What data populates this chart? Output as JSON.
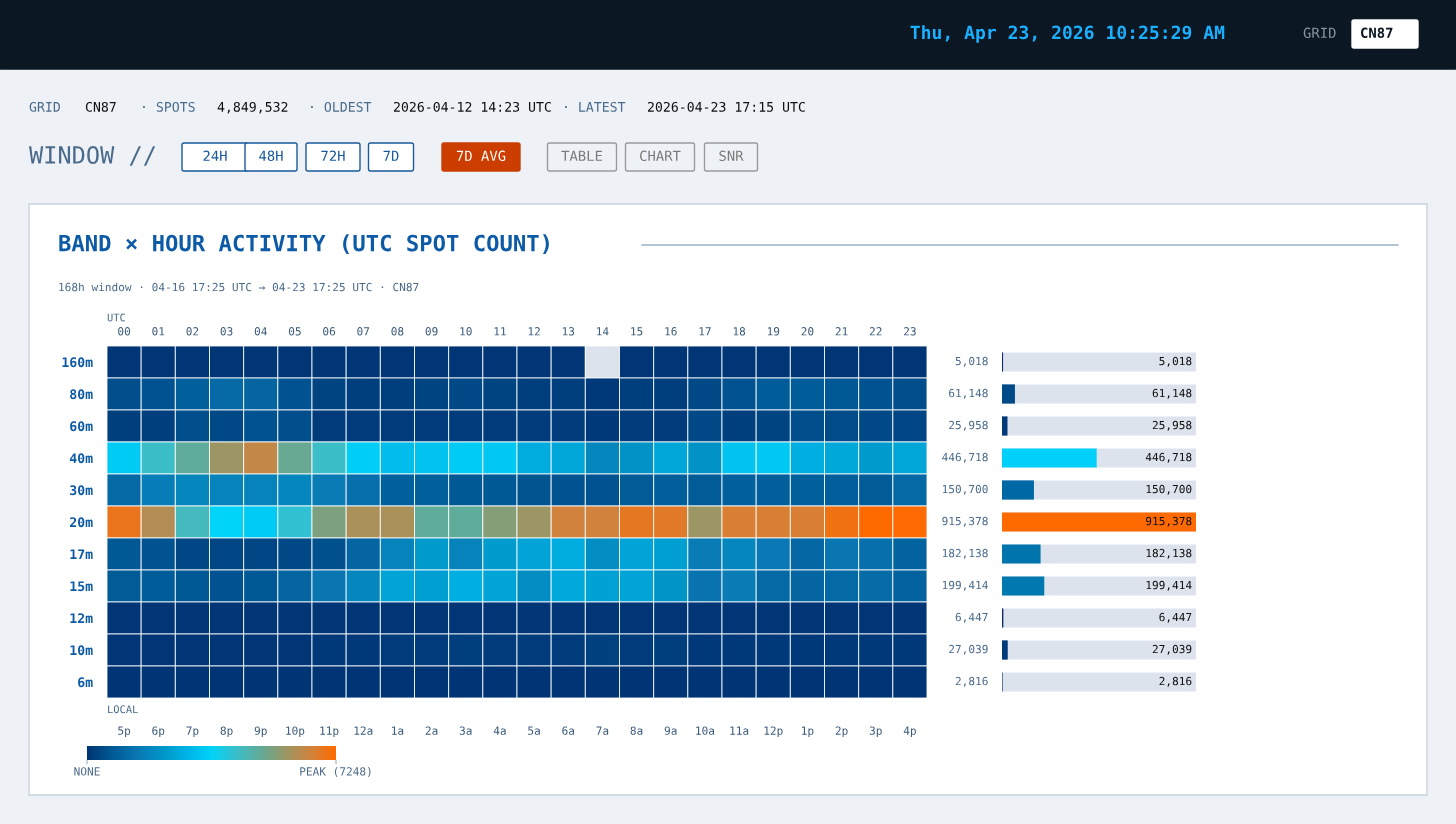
{
  "chart_data": [
    {
      "type": "heatmap",
      "title": "BAND × HOUR ACTIVITY (UTC SPOT COUNT)",
      "subtitle": "168h window · 04-16 17:25 UTC → 04-23 17:25 UTC · CN87",
      "annotations": [
        "Thu, Apr 23, 2026 10:25:29 AM",
        "GRID",
        "CN87",
        "GRID",
        "CN87",
        "· SPOTS",
        "4,849,532",
        "· OLDEST",
        "2026-04-12 14:23 UTC",
        "· LATEST",
        "2026-04-23 17:15 UTC",
        "WINDOW //",
        "24H",
        "48H",
        "72H",
        "7D",
        "7D AVG",
        "TABLE",
        "CHART",
        "SNR",
        "5p",
        "6p",
        "7p",
        "8p",
        "9p",
        "10p",
        "11p",
        "12a",
        "1a",
        "2a",
        "3a",
        "4a",
        "5a",
        "6a",
        "7a",
        "8a",
        "9a",
        "10a",
        "11a",
        "12p",
        "1p",
        "2p",
        "3p",
        "4p"
      ],
      "xlabel": "UTC",
      "x2label": "LOCAL",
      "categories": [
        "00",
        "01",
        "02",
        "03",
        "04",
        "05",
        "06",
        "07",
        "08",
        "09",
        "10",
        "11",
        "12",
        "13",
        "14",
        "15",
        "16",
        "17",
        "18",
        "19",
        "20",
        "21",
        "22",
        "23"
      ],
      "y_categories": [
        "160m",
        "80m",
        "60m",
        "40m",
        "30m",
        "20m",
        "17m",
        "15m",
        "12m",
        "10m",
        "6m"
      ],
      "cells": [
        [
          30,
          30,
          30,
          30,
          30,
          30,
          30,
          30,
          30,
          30,
          30,
          30,
          30,
          30,
          null,
          30,
          30,
          30,
          30,
          30,
          30,
          30,
          30,
          30
        ],
        [
          500,
          600,
          900,
          1100,
          1000,
          600,
          300,
          200,
          200,
          300,
          400,
          300,
          200,
          200,
          100,
          200,
          200,
          400,
          600,
          800,
          800,
          700,
          600,
          500
        ],
        [
          200,
          200,
          500,
          400,
          600,
          500,
          150,
          150,
          150,
          150,
          150,
          150,
          150,
          150,
          100,
          150,
          150,
          400,
          200,
          300,
          500,
          450,
          400,
          350
        ],
        [
          3400,
          4350,
          5000,
          5800,
          6300,
          5100,
          4350,
          3500,
          3100,
          3250,
          3400,
          3350,
          2700,
          2550,
          1800,
          2100,
          2550,
          2100,
          3250,
          3350,
          2800,
          2600,
          2300,
          2550
        ],
        [
          1100,
          1600,
          1800,
          1700,
          1700,
          1800,
          1550,
          1250,
          900,
          900,
          700,
          700,
          650,
          600,
          600,
          750,
          850,
          750,
          900,
          850,
          900,
          850,
          750,
          1100
        ],
        [
          6900,
          6100,
          4500,
          3650,
          3400,
          4200,
          5400,
          6000,
          6000,
          5000,
          5000,
          5500,
          5800,
          6500,
          6500,
          6850,
          6750,
          5800,
          6600,
          6600,
          6600,
          7000,
          7248,
          7200
        ],
        [
          700,
          600,
          350,
          350,
          350,
          400,
          550,
          1000,
          1700,
          2300,
          1700,
          2300,
          2500,
          2700,
          2000,
          2500,
          2400,
          1550,
          1800,
          1450,
          1050,
          1400,
          1250,
          950
        ],
        [
          750,
          800,
          700,
          600,
          700,
          1000,
          1400,
          1800,
          2500,
          2400,
          2800,
          2500,
          2000,
          2650,
          2450,
          2500,
          2150,
          1350,
          1550,
          1100,
          1000,
          1100,
          1150,
          950
        ],
        [
          40,
          40,
          40,
          40,
          40,
          40,
          40,
          40,
          40,
          40,
          40,
          40,
          40,
          40,
          40,
          40,
          40,
          40,
          40,
          40,
          40,
          40,
          40,
          40
        ],
        [
          50,
          50,
          50,
          50,
          50,
          50,
          100,
          100,
          150,
          150,
          200,
          150,
          150,
          150,
          250,
          150,
          200,
          100,
          100,
          100,
          100,
          100,
          100,
          100
        ],
        [
          15,
          15,
          15,
          15,
          15,
          15,
          15,
          15,
          15,
          15,
          15,
          15,
          15,
          15,
          15,
          15,
          15,
          15,
          15,
          15,
          15,
          15,
          15,
          15
        ]
      ],
      "colors": [
        "#003575",
        "#005a96",
        "#0a78b4",
        "#0096c8",
        "#00b4e6",
        "#00d4fa",
        "#3cbec8",
        "#64aa96",
        "#9b9664",
        "#d2823c",
        "#ff6a00"
      ],
      "clim": [
        0,
        7248
      ],
      "cticks": [
        {
          "value": 0,
          "label": "NONE"
        },
        {
          "value": 7248,
          "label": "PEAK (7248)"
        }
      ]
    },
    {
      "type": "bar",
      "orientation": "horizontal",
      "value_labels": [
        "5,018",
        "61,148",
        "25,958",
        "446,718",
        "150,700",
        "915,378",
        "182,138",
        "199,414",
        "6,447",
        "27,039",
        "2,816"
      ],
      "categories": [
        null,
        null,
        null,
        null,
        null,
        null,
        null,
        null,
        null,
        null,
        null
      ],
      "values": [
        5018,
        61148,
        25958,
        446718,
        150700,
        915378,
        182138,
        199414,
        6447,
        27039,
        2816
      ],
      "colors": [
        "#0a2a70",
        "#004a88",
        "#003a7a",
        "#00d0fa",
        "#0068a4",
        "#ff6a00",
        "#0074ac",
        "#0078b0",
        "#0a2a70",
        "#003a7a",
        "#0a2a70"
      ],
      "tick_labels": false
    }
  ]
}
